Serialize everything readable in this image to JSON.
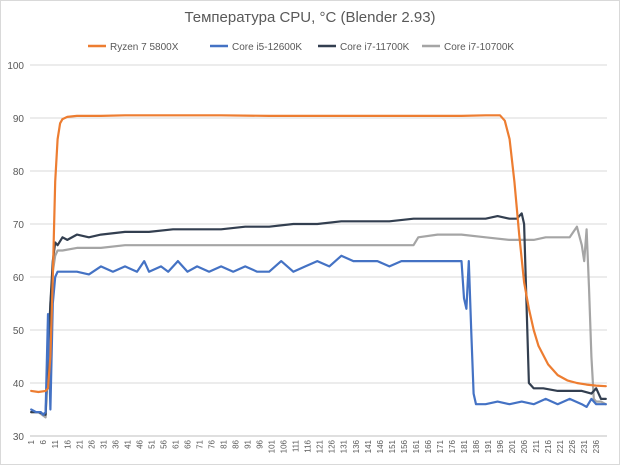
{
  "chart_data": {
    "type": "line",
    "title": "Температура CPU, °С (Blender 2.93)",
    "xlabel": "",
    "ylabel": "",
    "ylim": [
      30,
      100
    ],
    "yticks": [
      30,
      40,
      50,
      60,
      70,
      80,
      90,
      100
    ],
    "xlim": [
      1,
      240
    ],
    "xtick_step": 5,
    "grid": "horizontal",
    "legend_position": "top",
    "series": [
      {
        "name": "Ryzen 7 5800X",
        "color": "#ed7d31",
        "x": [
          1,
          4,
          7,
          8,
          9,
          10,
          11,
          12,
          13,
          14,
          16,
          20,
          30,
          40,
          60,
          80,
          100,
          120,
          140,
          160,
          180,
          190,
          196,
          198,
          200,
          202,
          204,
          206,
          208,
          210,
          212,
          216,
          220,
          224,
          228,
          232,
          236,
          240
        ],
        "values": [
          38.5,
          38.3,
          38.5,
          39,
          45,
          60,
          78,
          86,
          89,
          89.8,
          90.2,
          90.4,
          90.4,
          90.5,
          90.5,
          90.5,
          90.4,
          90.4,
          90.4,
          90.4,
          90.4,
          90.5,
          90.5,
          89.5,
          86,
          78,
          68,
          59,
          54,
          50,
          47,
          43.5,
          41.5,
          40.5,
          40,
          39.7,
          39.5,
          39.4
        ]
      },
      {
        "name": "Core i5-12600K",
        "color": "#4472c4",
        "x": [
          1,
          3,
          5,
          6,
          7,
          8,
          9,
          10,
          11,
          12,
          20,
          25,
          30,
          35,
          40,
          45,
          48,
          50,
          55,
          58,
          62,
          66,
          70,
          75,
          80,
          85,
          90,
          95,
          100,
          105,
          110,
          115,
          120,
          125,
          130,
          135,
          140,
          145,
          150,
          155,
          160,
          165,
          170,
          175,
          178,
          180,
          181,
          182,
          183,
          184,
          185,
          186,
          190,
          195,
          200,
          205,
          210,
          215,
          220,
          225,
          230,
          232,
          234,
          236,
          240
        ],
        "values": [
          35,
          34.5,
          34.5,
          34,
          34.5,
          53,
          35,
          55,
          60,
          61,
          61,
          60.5,
          62,
          61,
          62,
          61,
          63,
          61,
          62,
          61,
          63,
          61,
          62,
          61,
          62,
          61,
          62,
          61,
          61,
          63,
          61,
          62,
          63,
          62,
          64,
          63,
          63,
          63,
          62,
          63,
          63,
          63,
          63,
          63,
          63,
          63,
          56,
          54,
          63,
          50,
          38,
          36,
          36,
          36.5,
          36,
          36.5,
          36,
          37,
          36,
          37,
          36,
          35.5,
          37,
          36,
          36
        ]
      },
      {
        "name": "Core i7-11700K",
        "color": "#333f50",
        "x": [
          1,
          4,
          7,
          8,
          9,
          10,
          11,
          12,
          14,
          16,
          20,
          25,
          30,
          40,
          50,
          60,
          70,
          80,
          90,
          100,
          110,
          120,
          130,
          140,
          150,
          160,
          170,
          180,
          190,
          195,
          200,
          203,
          205,
          206,
          207,
          208,
          209,
          210,
          214,
          220,
          226,
          230,
          234,
          236,
          238,
          240
        ],
        "values": [
          34.5,
          34.5,
          34,
          45,
          55,
          63,
          66.5,
          66,
          67.5,
          67,
          68,
          67.5,
          68,
          68.5,
          68.5,
          69,
          69,
          69,
          69.5,
          69.5,
          70,
          70,
          70.5,
          70.5,
          70.5,
          71,
          71,
          71,
          71,
          71.5,
          71,
          71,
          72,
          70,
          55,
          40,
          39.5,
          39,
          39,
          38.5,
          38.5,
          38.5,
          38,
          39,
          37,
          37
        ]
      },
      {
        "name": "Core i7-10700K",
        "color": "#a5a5a5",
        "x": [
          1,
          4,
          7,
          8,
          9,
          10,
          11,
          12,
          14,
          20,
          30,
          40,
          60,
          80,
          100,
          120,
          140,
          150,
          160,
          162,
          170,
          180,
          190,
          200,
          205,
          210,
          215,
          220,
          225,
          228,
          230,
          231,
          232,
          233,
          234,
          235,
          236,
          238,
          240
        ],
        "values": [
          34.5,
          34.5,
          33.5,
          45,
          55,
          61,
          64,
          65,
          65,
          65.5,
          65.5,
          66,
          66,
          66,
          66,
          66,
          66,
          66,
          66,
          67.5,
          68,
          68,
          67.5,
          67,
          67,
          67,
          67.5,
          67.5,
          67.5,
          69.5,
          66,
          63,
          69,
          58,
          45,
          37,
          36.5,
          36.5,
          36
        ]
      }
    ]
  }
}
